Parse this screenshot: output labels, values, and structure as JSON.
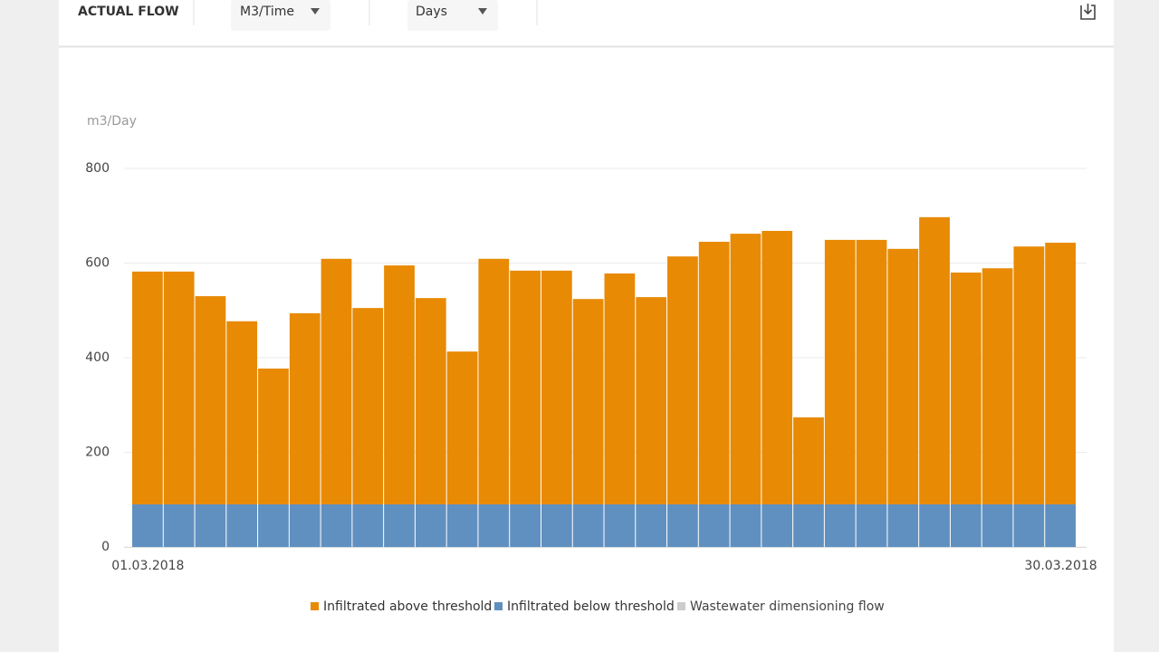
{
  "header": {
    "title": "ACTUAL FLOW",
    "unit_select": "M3/Time",
    "period_select": "Days"
  },
  "chart_data": {
    "type": "stacked_bar",
    "y_label": "m3/Day",
    "categories": [
      "01.03.2018",
      null,
      null,
      null,
      null,
      null,
      null,
      null,
      null,
      null,
      null,
      null,
      null,
      null,
      null,
      null,
      null,
      null,
      null,
      null,
      null,
      null,
      null,
      null,
      null,
      null,
      null,
      null,
      null,
      "30.03.2018"
    ],
    "series": [
      {
        "name": "Infiltrated above threshold",
        "color": "#e88a04",
        "visible": true,
        "values": [
          492,
          492,
          440,
          387,
          287,
          404,
          519,
          415,
          505,
          436,
          323,
          519,
          494,
          494,
          434,
          488,
          438,
          524,
          555,
          572,
          578,
          184,
          559,
          559,
          540,
          607,
          490,
          499,
          545,
          553
        ]
      },
      {
        "name": "Infiltrated below threshold",
        "color": "#6090c0",
        "visible": true,
        "values": [
          90,
          90,
          90,
          90,
          90,
          90,
          90,
          90,
          90,
          90,
          90,
          90,
          90,
          90,
          90,
          90,
          90,
          90,
          90,
          90,
          90,
          90,
          90,
          90,
          90,
          90,
          90,
          90,
          90,
          90
        ]
      },
      {
        "name": "Wastewater dimensioning flow",
        "color": "#c8c8c8",
        "visible": false,
        "values": [
          null,
          null,
          null,
          null,
          null,
          null,
          null,
          null,
          null,
          null,
          null,
          null,
          null,
          null,
          null,
          null,
          null,
          null,
          null,
          null,
          null,
          null,
          null,
          null,
          null,
          null,
          null,
          null,
          null,
          null
        ]
      }
    ],
    "ylim": [
      0,
      800
    ],
    "yticks": [
      0,
      200,
      400,
      600,
      800
    ],
    "grid": true
  }
}
